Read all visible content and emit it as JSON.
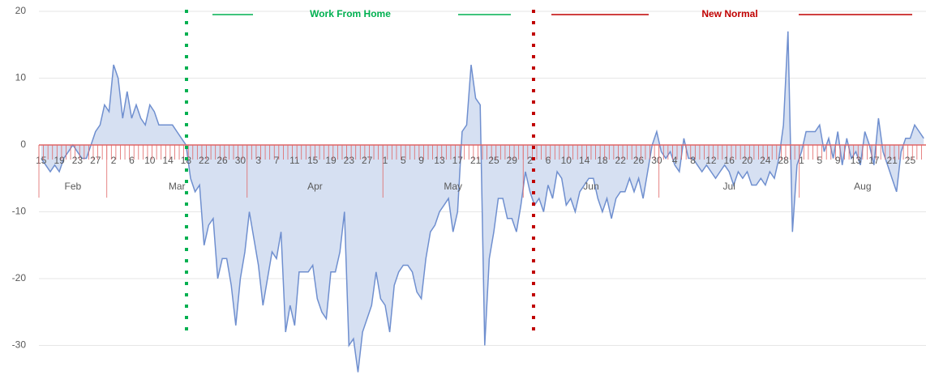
{
  "chart_data": {
    "type": "area",
    "categories": [
      "15",
      null,
      null,
      null,
      "19",
      null,
      null,
      null,
      "23",
      null,
      null,
      null,
      "27",
      null,
      null,
      null,
      "2",
      null,
      null,
      null,
      "6",
      null,
      null,
      null,
      "10",
      null,
      null,
      null,
      "14",
      null,
      null,
      null,
      "18",
      null,
      null,
      null,
      "22",
      null,
      null,
      null,
      "26",
      null,
      null,
      null,
      "30",
      null,
      null,
      null,
      "3",
      null,
      null,
      null,
      "7",
      null,
      null,
      null,
      "11",
      null,
      null,
      null,
      "15",
      null,
      null,
      null,
      "19",
      null,
      null,
      null,
      "23",
      null,
      null,
      null,
      "27",
      null,
      null,
      null,
      "1",
      null,
      null,
      null,
      "5",
      null,
      null,
      null,
      "9",
      null,
      null,
      null,
      "13",
      null,
      null,
      null,
      "17",
      null,
      null,
      null,
      "21",
      null,
      null,
      null,
      "25",
      null,
      null,
      null,
      "29",
      null,
      null,
      null,
      "2",
      null,
      null,
      null,
      "6",
      null,
      null,
      null,
      "10",
      null,
      null,
      null,
      "14",
      null,
      null,
      null,
      "18",
      null,
      null,
      null,
      "22",
      null,
      null,
      null,
      "26",
      null,
      null,
      null,
      "30",
      null,
      null,
      null,
      "4",
      null,
      null,
      null,
      "8",
      null,
      null,
      null,
      "12",
      null,
      null,
      null,
      "16",
      null,
      null,
      null,
      "20",
      null,
      null,
      null,
      "24",
      null,
      null,
      null,
      "28",
      null,
      null,
      null,
      "1",
      null,
      null,
      null,
      "5",
      null,
      null,
      null,
      "9",
      null,
      null,
      null,
      "13",
      null,
      null,
      null,
      "17",
      null,
      null,
      null,
      "21",
      null,
      null,
      null,
      "25",
      null,
      null,
      null
    ],
    "months": [
      {
        "label": "Feb",
        "span": 15
      },
      {
        "label": "Mar",
        "span": 31
      },
      {
        "label": "Apr",
        "span": 30
      },
      {
        "label": "May",
        "span": 31
      },
      {
        "label": "Jun",
        "span": 30
      },
      {
        "label": "Jul",
        "span": 31
      },
      {
        "label": "Aug",
        "span": 28
      }
    ],
    "series": [
      {
        "color": "#6f8fcf",
        "fill": "#d6e0f2",
        "values": [
          -2,
          -3,
          -4,
          -3,
          -4,
          -2,
          -1,
          0,
          -1,
          -2,
          -2,
          0,
          2,
          3,
          6,
          5,
          12,
          10,
          4,
          8,
          4,
          6,
          4,
          3,
          6,
          5,
          3,
          3,
          3,
          3,
          2,
          1,
          0,
          -5,
          -7,
          -6,
          -15,
          -12,
          -11,
          -20,
          -17,
          -17,
          -21,
          -27,
          -20,
          -16,
          -10,
          -14,
          -18,
          -24,
          -20,
          -16,
          -17,
          -13,
          -28,
          -24,
          -27,
          -19,
          -19,
          -19,
          -18,
          -23,
          -25,
          -26,
          -19,
          -19,
          -16,
          -10,
          -30,
          -29,
          -34,
          -28,
          -26,
          -24,
          -19,
          -23,
          -24,
          -28,
          -21,
          -19,
          -18,
          -18,
          -19,
          -22,
          -23,
          -17,
          -13,
          -12,
          -10,
          -9,
          -8,
          -13,
          -10,
          2,
          3,
          12,
          7,
          6,
          -30,
          -17,
          -13,
          -8,
          -8,
          -11,
          -11,
          -13,
          -9,
          -4,
          -7,
          -9,
          -8,
          -10,
          -6,
          -8,
          -4,
          -5,
          -9,
          -8,
          -10,
          -7,
          -6,
          -5,
          -5,
          -8,
          -10,
          -8,
          -11,
          -8,
          -7,
          -7,
          -5,
          -7,
          -5,
          -8,
          -4,
          0,
          2,
          -1,
          -2,
          -1,
          -3,
          -4,
          1,
          -2,
          -2,
          -3,
          -4,
          -3,
          -4,
          -5,
          -4,
          -3,
          -4,
          -6,
          -4,
          -5,
          -4,
          -6,
          -6,
          -5,
          -6,
          -4,
          -5,
          -2,
          3,
          17,
          -13,
          -3,
          -1,
          2,
          2,
          2,
          3,
          -1,
          1,
          -2,
          2,
          -3,
          1,
          -2,
          -1,
          -3,
          2,
          0,
          -3,
          4,
          -1,
          -3,
          -5,
          -7,
          -1,
          1,
          1,
          3,
          2,
          1
        ]
      }
    ],
    "ylim": [
      -34,
      20
    ],
    "yticks": [
      20,
      10,
      0,
      -10,
      -20,
      -30
    ],
    "grid": true,
    "axis_color": "#e06666",
    "annotations": [
      {
        "text": "Work From Home",
        "color": "#00b050"
      },
      {
        "text": "New Normal",
        "color": "#c00000"
      }
    ]
  }
}
